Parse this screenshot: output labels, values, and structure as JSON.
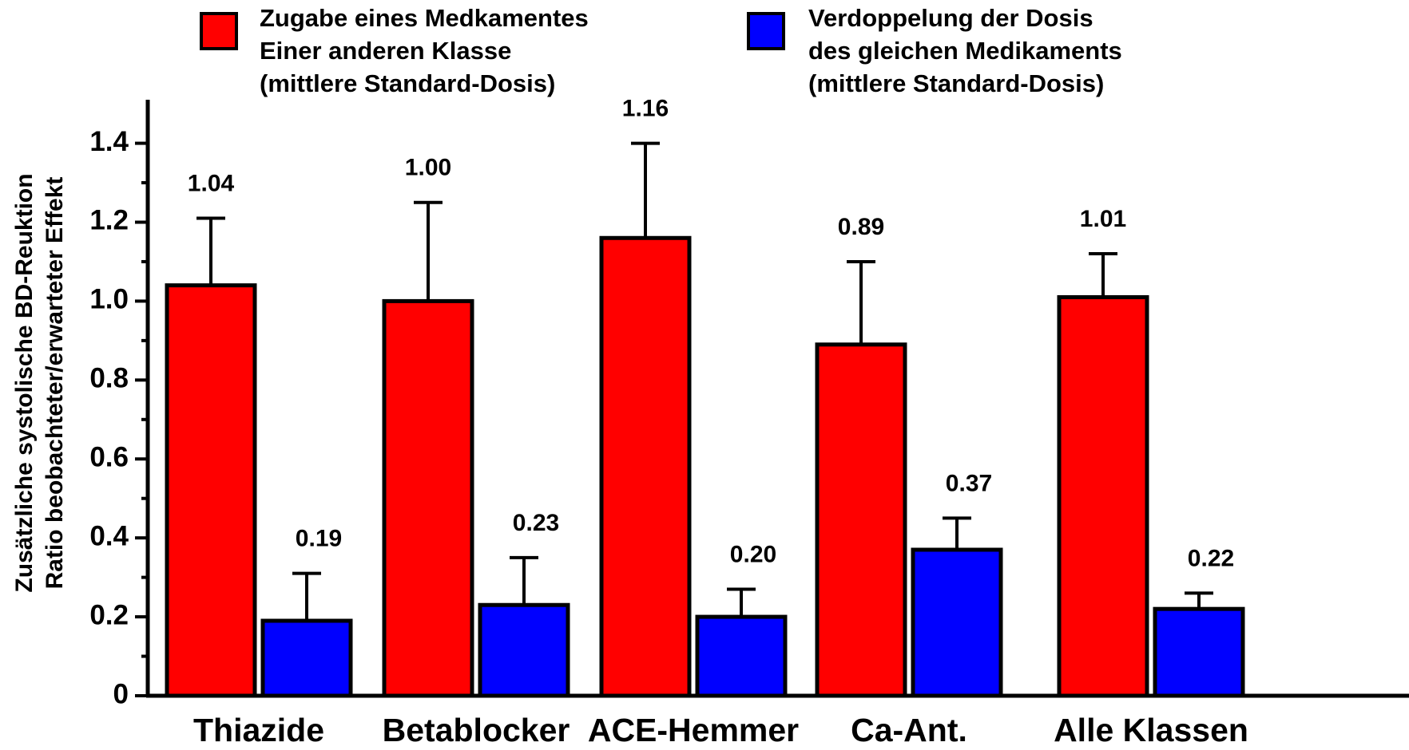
{
  "chart_data": {
    "type": "bar",
    "y_label": "Zusätzliche systolische BD-Reuktion\nRatio beobachteter/erwarteter Effekt",
    "categories": [
      "Thiazide",
      "Betablocker",
      "ACE-Hemmer",
      "Ca-Ant.",
      "Alle Klassen"
    ],
    "series": [
      {
        "name": "Zugabe eines Medkamentes\nEiner anderen Klasse\n(mittlere Standard-Dosis)",
        "color": "#ff0000",
        "values": [
          1.04,
          1.0,
          1.16,
          0.89,
          1.01
        ],
        "value_labels": [
          "1.04",
          "1.00",
          "1.16",
          "0.89",
          "1.01"
        ],
        "errors": [
          0.17,
          0.25,
          0.24,
          0.21,
          0.11
        ]
      },
      {
        "name": "Verdoppelung der Dosis\ndes gleichen Medikaments\n(mittlere Standard-Dosis)",
        "color": "#0000ff",
        "values": [
          0.19,
          0.23,
          0.2,
          0.37,
          0.22
        ],
        "value_labels": [
          "0.19",
          "0.23",
          "0.20",
          "0.37",
          "0.22"
        ],
        "errors": [
          0.12,
          0.12,
          0.07,
          0.08,
          0.04
        ]
      }
    ],
    "ylim": [
      0,
      1.48
    ],
    "yticks": [
      0,
      0.2,
      0.4,
      0.6,
      0.8,
      {
        "value": 1,
        "label": "1.0"
      },
      1.2,
      1.4
    ],
    "minor_yticks": [
      0.1,
      0.3,
      0.5,
      0.7,
      0.9,
      1.1,
      1.3
    ],
    "grid": false
  }
}
